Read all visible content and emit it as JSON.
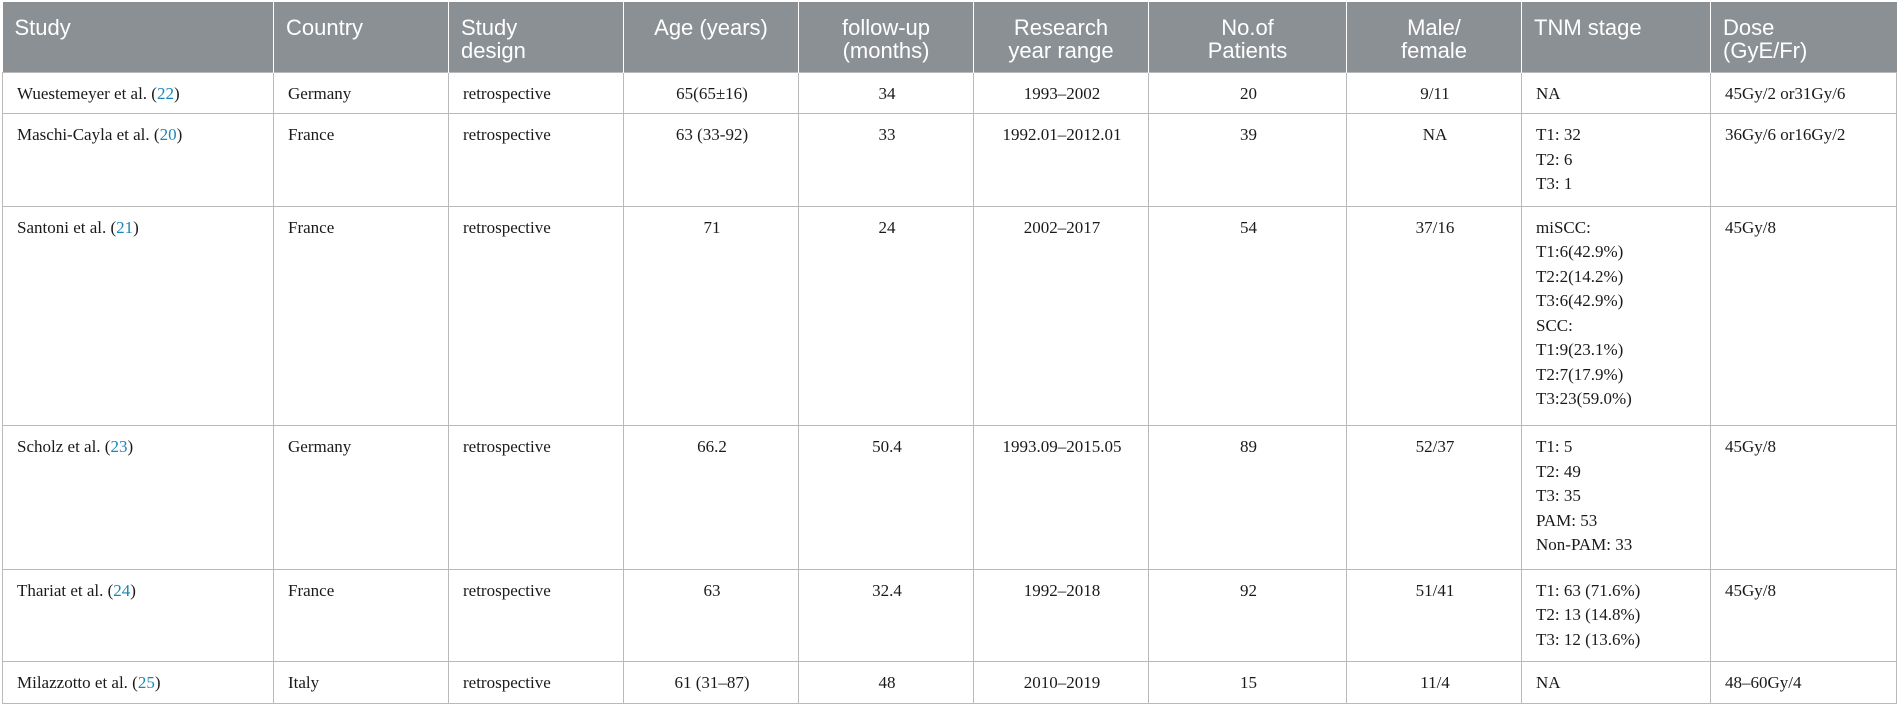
{
  "table": {
    "headers": [
      {
        "lines": [
          "Study"
        ],
        "align": "l"
      },
      {
        "lines": [
          "Country"
        ],
        "align": "l"
      },
      {
        "lines": [
          "Study",
          "design"
        ],
        "align": "l"
      },
      {
        "lines": [
          "Age (years)"
        ],
        "align": "c"
      },
      {
        "lines": [
          "follow-up",
          "(months)"
        ],
        "align": "c"
      },
      {
        "lines": [
          "Research",
          "year range"
        ],
        "align": "c"
      },
      {
        "lines": [
          "No.of",
          "Patients"
        ],
        "align": "c"
      },
      {
        "lines": [
          "Male/",
          "female"
        ],
        "align": "c"
      },
      {
        "lines": [
          "TNM stage"
        ],
        "align": "l"
      },
      {
        "lines": [
          "Dose",
          "(GyE/Fr)"
        ],
        "align": "l"
      }
    ],
    "rows": [
      {
        "study": {
          "author": "Wuestemeyer et al. (",
          "ref": "22",
          "close": ")"
        },
        "country": "Germany",
        "design": "retrospective",
        "age": "65(65±16)",
        "followup": "34",
        "years": "1993–2002",
        "patients": "20",
        "sex": "9/11",
        "tnm": [
          "NA"
        ],
        "dose": "45Gy/2 or31Gy/6"
      },
      {
        "study": {
          "author": "Maschi-Cayla et al. (",
          "ref": "20",
          "close": ")"
        },
        "country": "France",
        "design": "retrospective",
        "age": "63 (33-92)",
        "followup": "33",
        "years": "1992.01–2012.01",
        "patients": "39",
        "sex": "NA",
        "tnm": [
          "T1: 32",
          "T2: 6",
          "T3: 1"
        ],
        "dose": "36Gy/6 or16Gy/2"
      },
      {
        "study": {
          "author": "Santoni et al. (",
          "ref": "21",
          "close": ")"
        },
        "country": "France",
        "design": "retrospective",
        "age": "71",
        "followup": "24",
        "years": "2002–2017",
        "patients": "54",
        "sex": "37/16",
        "tnm": [
          "miSCC:",
          "T1:6(42.9%)",
          "T2:2(14.2%)",
          "T3:6(42.9%)",
          "SCC:",
          "T1:9(23.1%)",
          "T2:7(17.9%)",
          "T3:23(59.0%)"
        ],
        "dose": "45Gy/8"
      },
      {
        "study": {
          "author": "Scholz et al. (",
          "ref": "23",
          "close": ")"
        },
        "country": "Germany",
        "design": "retrospective",
        "age": "66.2",
        "followup": "50.4",
        "years": "1993.09–2015.05",
        "patients": "89",
        "sex": "52/37",
        "tnm": [
          "T1: 5",
          "T2: 49",
          "T3: 35",
          "PAM: 53",
          "Non-PAM: 33"
        ],
        "dose": "45Gy/8"
      },
      {
        "study": {
          "author": "Thariat et al. (",
          "ref": "24",
          "close": ")"
        },
        "country": "France",
        "design": "retrospective",
        "age": "63",
        "followup": "32.4",
        "years": "1992–2018",
        "patients": "92",
        "sex": "51/41",
        "tnm": [
          "T1: 63 (71.6%)",
          "T2: 13 (14.8%)",
          "T3: 12 (13.6%)"
        ],
        "dose": "45Gy/8"
      },
      {
        "study": {
          "author": "Milazzotto et al. (",
          "ref": "25",
          "close": ")"
        },
        "country": "Italy",
        "design": "retrospective",
        "age": "61 (31–87)",
        "followup": "48",
        "years": "2010–2019",
        "patients": "15",
        "sex": "11/4",
        "tnm": [
          "NA"
        ],
        "dose": "48–60Gy/4"
      }
    ]
  }
}
